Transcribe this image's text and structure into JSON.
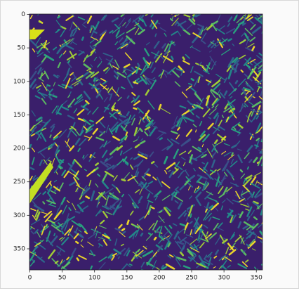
{
  "chart_data": {
    "type": "image",
    "xlim": [
      -0.5,
      359.5
    ],
    "ylim": [
      381.5,
      -0.5
    ],
    "xticks": [
      0,
      50,
      100,
      150,
      200,
      250,
      300,
      350
    ],
    "yticks": [
      0,
      50,
      100,
      150,
      200,
      250,
      300,
      350
    ]
  }
}
